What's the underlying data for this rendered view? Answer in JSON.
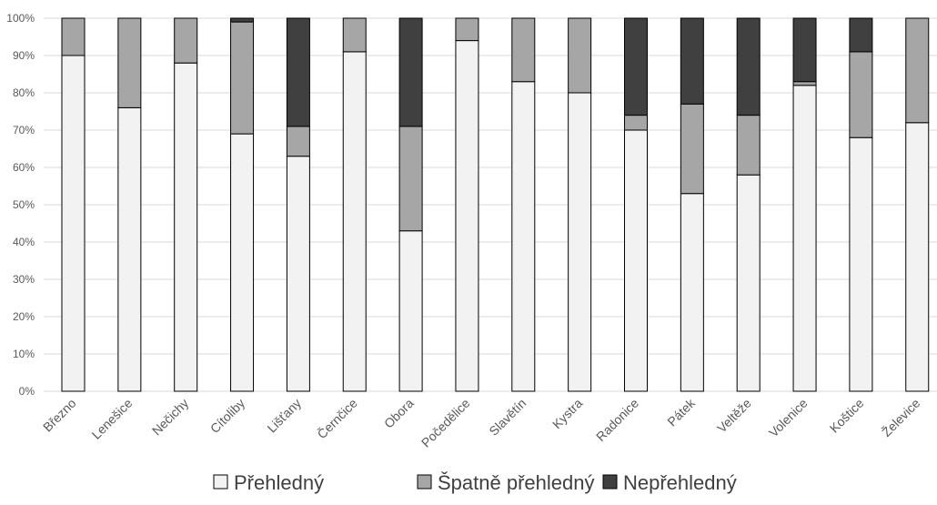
{
  "chart_data": {
    "type": "bar",
    "stacked": true,
    "percent_stacked": true,
    "title": "",
    "xlabel": "",
    "ylabel": "",
    "ylim": [
      0,
      100
    ],
    "y_ticks": [
      "0%",
      "10%",
      "20%",
      "30%",
      "40%",
      "50%",
      "60%",
      "70%",
      "80%",
      "90%",
      "100%"
    ],
    "y_tick_values": [
      0,
      10,
      20,
      30,
      40,
      50,
      60,
      70,
      80,
      90,
      100
    ],
    "grid": true,
    "legend_position": "bottom",
    "categories": [
      "Březno",
      "Lenešice",
      "Nečichy",
      "Cítoliby",
      "Lišťany",
      "Černčice",
      "Obora",
      "Počedělice",
      "Slavětín",
      "Kystra",
      "Radonice",
      "Pátek",
      "Veltěže",
      "Volenice",
      "Koštice",
      "Želevice"
    ],
    "series": [
      {
        "name": "Přehledný",
        "color": "#f2f2f2",
        "values": [
          90,
          76,
          88,
          69,
          63,
          91,
          43,
          94,
          83,
          80,
          70,
          53,
          58,
          82,
          68,
          72
        ]
      },
      {
        "name": "Špatně přehledný",
        "color": "#a6a6a6",
        "values": [
          10,
          24,
          12,
          30,
          8,
          9,
          28,
          6,
          17,
          20,
          4,
          24,
          16,
          1,
          23,
          28
        ]
      },
      {
        "name": "Nepřehledný",
        "color": "#404040",
        "values": [
          0,
          0,
          0,
          1,
          29,
          0,
          29,
          0,
          0,
          0,
          26,
          23,
          26,
          17,
          9,
          0
        ]
      }
    ]
  }
}
